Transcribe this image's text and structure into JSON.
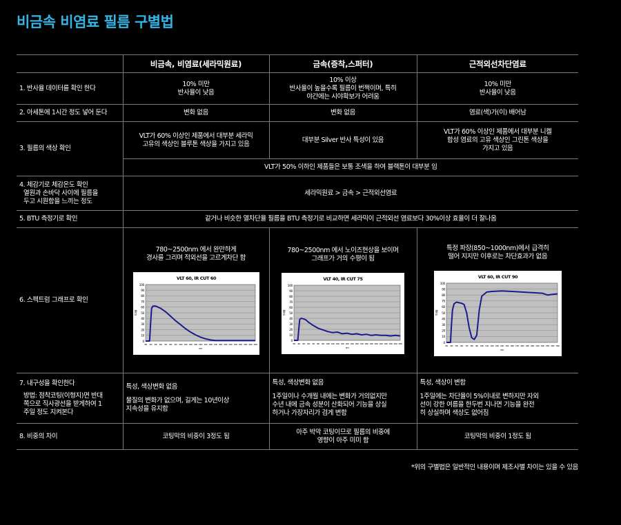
{
  "title": "비금속 비염료 필름 구별법",
  "headers": [
    "비금속, 비염료(세라믹원료)",
    "금속(증착,스퍼터)",
    "근적외선차단염료"
  ],
  "rows": {
    "r1": {
      "label": "1. 반사율 데이터를 확인 한다",
      "c1": [
        "10% 미만",
        "반사율이 낮음"
      ],
      "c2": [
        "10% 이상",
        "반사율이 높을수록 필름이 번쩍이며, 특히",
        "야간에는 시야확보가 어려움"
      ],
      "c3": [
        "10% 미만",
        "반사율이 낮음"
      ]
    },
    "r2": {
      "label": "2. 아세톤에 1시간 정도 넣어 둔다",
      "c1": "변화 없음",
      "c2": "변화 없음",
      "c3": "염료(색)가(이) 배어남"
    },
    "r3": {
      "label": "3. 필름의 색상 확인",
      "c1": [
        "VLT가 60% 이상인 제품에서 대부분 세라믹",
        "고유의 색상인 블루톤 색상을 가지고 있음"
      ],
      "c2": "대부분 Silver 반사 특성이 있음",
      "c3": [
        "VLT가 60% 이상인 제품에서 대부분 니켈",
        "합성 염료의 고유 색상인 그린톤 색상을",
        "가지고 있음"
      ],
      "note": "VLT가 50% 이하인 제품들은 보통 조색을 하여 블랙톤이 대부분 임"
    },
    "r4": {
      "label": [
        "4. 체감기로 체감온도 확인",
        "열원과 손바닥 사이에 필름을",
        "두고 시원함을 느끼는 정도"
      ],
      "value": "세라믹원료 > 금속 > 근적외선염료"
    },
    "r5": {
      "label": "5. BTU 측정기로 확인",
      "value": "같거나 비슷한 열차단율 필름을 BTU 측정기로 비교하면 세라믹이 근적외선 염료보다 30%이상 효율이 더 잘나옴"
    },
    "r6": {
      "label": "6. 스펙트럼 그래프로 확인",
      "c1": [
        "780~2500nm 에서 완만하게",
        "경사를 그리며 적외선을 고르게차단 함"
      ],
      "c2": [
        "780~2500nm 에서 노이즈현상을 보이며",
        "그래프가 거의 수평이 됨"
      ],
      "c3": [
        "특정 파장(850~1000nm)에서 급격히",
        "떨어 지지만 이후로는 차단효과가 없음"
      ]
    },
    "r7": {
      "label": "7. 내구성을 확인한다",
      "label_sub": [
        "방법: 점착코팅(이형지)면 반대",
        "쪽으로 직사광선을 받게하여 1",
        "주일 정도 지켜본다"
      ],
      "c1_head": "특성, 색상변화 없음",
      "c1": [
        "물질의 변화가 없으며, 길게는 10년이상",
        "지속성을 유지함"
      ],
      "c2_head": "특성, 색상변화 없음",
      "c2": [
        "1주일이나 수개월 내에는 변화가 거의없지만",
        "수년 내에 금속 성분이 산화되어 기능을 상실",
        "하거나 가장자리가 검게 변함"
      ],
      "c3_head": "특성, 색상이 변함",
      "c3": [
        "1주일에는 차단율이 5%이내로 변하지만 자외",
        "선이 강한 여름을 한두번 지나면 기능을 완전",
        "히 상실하며 색상도 없어짐"
      ]
    },
    "r8": {
      "label": "8. 비중의 차이",
      "c1": "코팅막의 비중이 3정도 됨",
      "c2": [
        "아주 박막 코팅이므로 필름의 비중에",
        "영향이 아주 미미 함"
      ],
      "c3": "코팅막의 비중이 1정도 됨"
    }
  },
  "footnote": "*위의 구별법은 일반적인 내용이며 제조사별 차이는 있을 수 있음",
  "chart_data": [
    {
      "type": "line",
      "title": "VLT 60, IR CUT 60",
      "xlabel": "nm",
      "ylabel": "투과율",
      "ylim": [
        0,
        100
      ],
      "yticks": [
        0,
        10,
        20,
        30,
        40,
        50,
        60,
        70,
        80,
        90,
        100
      ],
      "xlim": [
        300,
        2500
      ],
      "color": "#1a1a8c",
      "x": [
        300,
        340,
        380,
        400,
        420,
        450,
        500,
        550,
        600,
        700,
        800,
        900,
        1000,
        1100,
        1200,
        1300,
        1400,
        1500,
        1600,
        1700,
        1800,
        1900,
        2000,
        2100,
        2200,
        2300,
        2400,
        2500
      ],
      "y": [
        0,
        0,
        0,
        30,
        58,
        62,
        62,
        60,
        58,
        52,
        44,
        36,
        29,
        22,
        16,
        11,
        7,
        4,
        2,
        1,
        1,
        1,
        1,
        1,
        1,
        1,
        1,
        1
      ]
    },
    {
      "type": "line",
      "title": "VLT 40, IR CUT 75",
      "xlabel": "nm",
      "ylabel": "투과율",
      "ylim": [
        0,
        100
      ],
      "yticks": [
        0,
        10,
        20,
        30,
        40,
        50,
        60,
        70,
        80,
        90,
        100
      ],
      "xlim": [
        300,
        2500
      ],
      "color": "#1a1a8c",
      "x": [
        300,
        340,
        380,
        400,
        420,
        450,
        500,
        550,
        600,
        700,
        800,
        900,
        1000,
        1100,
        1200,
        1300,
        1400,
        1500,
        1600,
        1700,
        1800,
        1900,
        2000,
        2100,
        2200,
        2300,
        2400,
        2500
      ],
      "y": [
        0,
        0,
        0,
        20,
        38,
        40,
        39,
        37,
        33,
        27,
        22,
        19,
        16,
        14,
        15,
        12,
        13,
        11,
        12,
        10,
        11,
        9,
        10,
        9,
        9,
        8,
        9,
        8
      ]
    },
    {
      "type": "line",
      "title": "VLT 60, IR CUT 90",
      "xlabel": "nm",
      "ylabel": "투과율",
      "ylim": [
        0,
        100
      ],
      "yticks": [
        0,
        10,
        20,
        30,
        40,
        50,
        60,
        70,
        80,
        90,
        100
      ],
      "xlim": [
        300,
        2500
      ],
      "color": "#1a1a8c",
      "x": [
        300,
        340,
        380,
        400,
        420,
        450,
        500,
        550,
        600,
        650,
        700,
        750,
        800,
        850,
        900,
        950,
        1000,
        1100,
        1200,
        1400,
        1600,
        1800,
        2000,
        2200,
        2300,
        2400,
        2500
      ],
      "y": [
        0,
        0,
        0,
        30,
        55,
        65,
        68,
        67,
        66,
        64,
        50,
        25,
        8,
        5,
        12,
        55,
        78,
        85,
        86,
        87,
        86,
        85,
        84,
        83,
        80,
        81,
        82
      ]
    }
  ]
}
